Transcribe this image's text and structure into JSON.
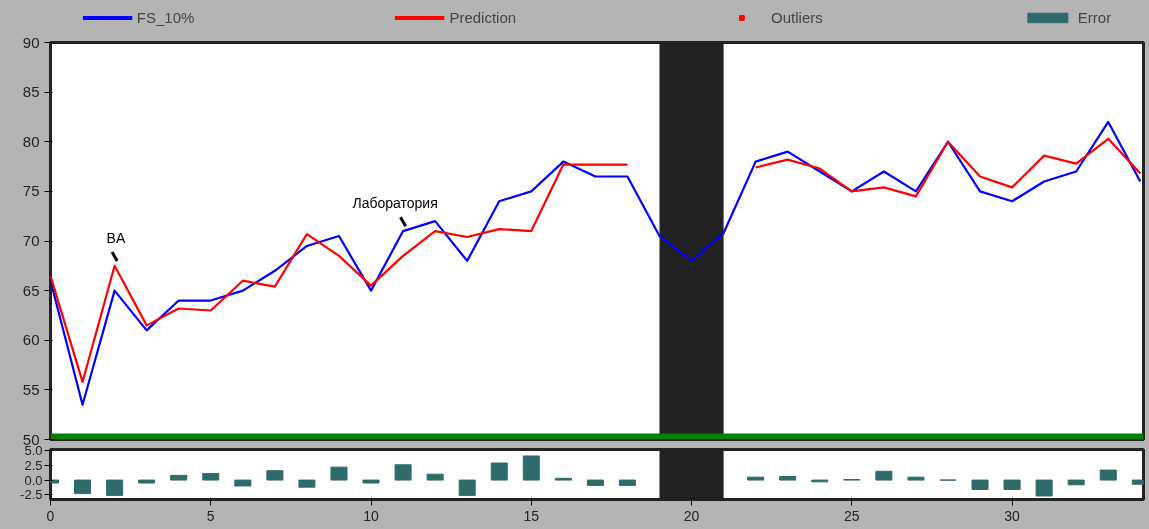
{
  "chart_data": [
    {
      "type": "line",
      "x": [
        0,
        1,
        2,
        3,
        4,
        5,
        6,
        7,
        8,
        9,
        10,
        11,
        12,
        13,
        14,
        15,
        16,
        17,
        18,
        19,
        20,
        21,
        22,
        23,
        24,
        25,
        26,
        27,
        28,
        29,
        30,
        31,
        32,
        33,
        34
      ],
      "series": [
        {
          "name": "FS_10%",
          "color": "#0000ff",
          "values": [
            66,
            53.5,
            65,
            61,
            64,
            64,
            65,
            67,
            69.5,
            70.5,
            65,
            71,
            72,
            68,
            74,
            75,
            78,
            76.5,
            76.5,
            70.5,
            68,
            70.8,
            78,
            79,
            77,
            75,
            77,
            75,
            80,
            75,
            74,
            76,
            77,
            82,
            76
          ]
        },
        {
          "name": "Prediction",
          "color": "#ff0000",
          "values": [
            66.5,
            55.8,
            67.5,
            61.5,
            63.2,
            63,
            66,
            65.4,
            70.7,
            68.5,
            65.5,
            68.5,
            71,
            70.4,
            71.2,
            71,
            77.7,
            77.7,
            77.7,
            null,
            null,
            null,
            77.4,
            78.2,
            77.3,
            75,
            75.4,
            74.5,
            80,
            76.5,
            75.4,
            78.6,
            77.8,
            80.3,
            76.8
          ]
        },
        {
          "name": "Outliers",
          "type": "scatter",
          "marker": "square",
          "color": "#ff0000",
          "values": [
            null,
            null,
            null,
            null,
            null,
            null,
            null,
            null,
            null,
            null,
            null,
            null,
            null,
            null,
            null,
            null,
            null,
            null,
            null,
            null,
            null,
            null,
            null,
            null,
            null,
            null,
            null,
            null,
            null,
            null,
            null,
            null,
            null,
            null,
            null
          ]
        }
      ],
      "xlim": [
        0,
        34.1
      ],
      "ylim": [
        50,
        90
      ],
      "yticks": [
        50,
        55,
        60,
        65,
        70,
        75,
        80,
        85,
        90
      ],
      "tick_labels": "y",
      "grid": false,
      "legend": "top",
      "bands": [
        {
          "axis": "x",
          "from": 19,
          "to": 21,
          "color": "#222222"
        }
      ],
      "ref_lines": [
        {
          "axis": "y",
          "value": 50.3,
          "color": "#008000"
        }
      ],
      "annotations": [
        {
          "text": "BA",
          "x": 2,
          "y": 67.5
        },
        {
          "text": "Лаборатория",
          "x": 11,
          "y": 71
        }
      ]
    },
    {
      "type": "bar",
      "x": [
        0,
        1,
        2,
        3,
        4,
        5,
        6,
        7,
        8,
        9,
        10,
        11,
        12,
        13,
        14,
        15,
        16,
        17,
        18,
        19,
        20,
        21,
        22,
        23,
        24,
        25,
        26,
        27,
        28,
        29,
        30,
        31,
        32,
        33,
        34
      ],
      "series": [
        {
          "name": "Error",
          "color": "#2f6b6b",
          "values": [
            -0.5,
            -2.3,
            -2.6,
            -0.5,
            0.8,
            1.1,
            -1.0,
            1.6,
            -1.2,
            2.2,
            -0.5,
            2.6,
            1.0,
            -2.6,
            2.9,
            4.1,
            0.3,
            -0.9,
            -0.9,
            null,
            null,
            null,
            0.5,
            0.6,
            -0.3,
            0.1,
            1.5,
            0.5,
            0,
            -1.6,
            -1.6,
            -2.7,
            -0.8,
            1.7,
            -0.7
          ]
        }
      ],
      "xlim": [
        0,
        34.1
      ],
      "xticks": [
        0,
        5,
        10,
        15,
        20,
        25,
        30
      ],
      "ylim": [
        -3.3,
        5.2
      ],
      "yticks": [
        {
          "value": 5,
          "label": "5.0"
        },
        {
          "value": 2.5,
          "label": "2.5"
        },
        {
          "value": 0,
          "label": "0.0"
        },
        {
          "value": -2.5,
          "label": "-2.5"
        }
      ],
      "grid": false,
      "bands": [
        {
          "axis": "x",
          "from": 19,
          "to": 21,
          "color": "#222222"
        }
      ]
    }
  ]
}
